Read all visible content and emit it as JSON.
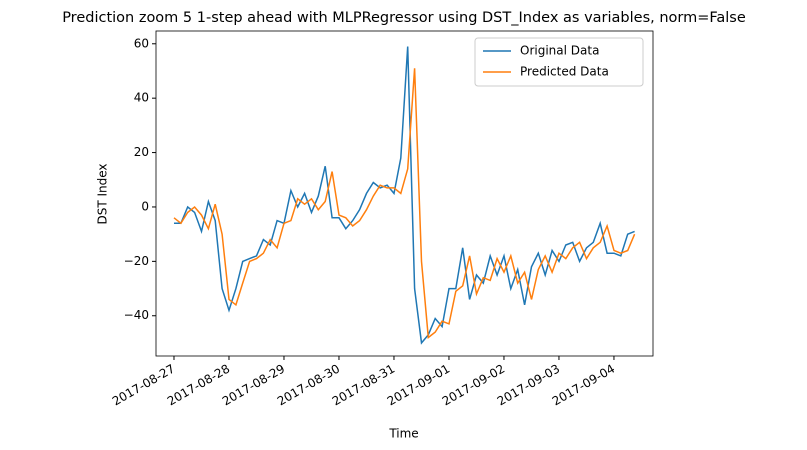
{
  "chart_data": {
    "type": "line",
    "title": "Prediction zoom 5 1-step ahead with MLPRegressor using DST_Index as variables, norm=False",
    "x_label": "Time",
    "y_label": "DST Index",
    "x": [
      0,
      0.125,
      0.25,
      0.375,
      0.5,
      0.625,
      0.75,
      0.875,
      1,
      1.125,
      1.25,
      1.375,
      1.5,
      1.625,
      1.75,
      1.875,
      2,
      2.125,
      2.25,
      2.375,
      2.5,
      2.625,
      2.75,
      2.875,
      3,
      3.125,
      3.25,
      3.375,
      3.5,
      3.625,
      3.75,
      3.875,
      4,
      4.125,
      4.25,
      4.375,
      4.5,
      4.625,
      4.75,
      4.875,
      5,
      5.125,
      5.25,
      5.375,
      5.5,
      5.625,
      5.75,
      5.875,
      6,
      6.125,
      6.25,
      6.375,
      6.5,
      6.625,
      6.75,
      6.875,
      7,
      7.125,
      7.25,
      7.375,
      7.5,
      7.625,
      7.75,
      7.875,
      8,
      8.125,
      8.25,
      8.375
    ],
    "series": [
      {
        "name": "Original Data",
        "color": "#1f77b4",
        "values": [
          -6,
          -6,
          0,
          -2,
          -9,
          2,
          -5,
          -30,
          -38,
          -30,
          -20,
          -19,
          -18,
          -12,
          -14,
          -5,
          -6,
          6,
          0,
          5,
          -2,
          4,
          15,
          -4,
          -4,
          -8,
          -5,
          -1,
          5,
          9,
          7,
          8,
          5,
          18,
          59,
          -30,
          -50,
          -47,
          -41,
          -44,
          -30,
          -30,
          -15,
          -34,
          -25,
          -28,
          -18,
          -25,
          -18,
          -30,
          -23,
          -36,
          -22,
          -17,
          -25,
          -16,
          -20,
          -14,
          -13,
          -20,
          -15,
          -13,
          -6,
          -17,
          -17,
          -18,
          -10,
          -9
        ]
      },
      {
        "name": "Predicted Data",
        "color": "#ff7f0e",
        "values": [
          -4,
          -6,
          -2,
          0,
          -3,
          -8,
          1,
          -10,
          -34,
          -36,
          -28,
          -20,
          -19,
          -17,
          -12,
          -15,
          -6,
          -5,
          3,
          1,
          3,
          -1,
          2,
          13,
          -3,
          -4,
          -7,
          -5,
          -1,
          4,
          8,
          7,
          7,
          5,
          14,
          51,
          -20,
          -48,
          -46,
          -42,
          -43,
          -31,
          -29,
          -18,
          -32,
          -26,
          -27,
          -19,
          -24,
          -18,
          -28,
          -24,
          -34,
          -23,
          -18,
          -24,
          -17,
          -19,
          -15,
          -13,
          -19,
          -15,
          -13,
          -7,
          -16,
          -17,
          -16,
          -10
        ]
      }
    ],
    "xlim": [
      -0.327,
      8.71
    ],
    "xticks": [
      {
        "value": 0,
        "label": "2017-08-27"
      },
      {
        "value": 1,
        "label": "2017-08-28"
      },
      {
        "value": 2,
        "label": "2017-08-29"
      },
      {
        "value": 3,
        "label": "2017-08-30"
      },
      {
        "value": 4,
        "label": "2017-08-31"
      },
      {
        "value": 5,
        "label": "2017-09-01"
      },
      {
        "value": 6,
        "label": "2017-09-02"
      },
      {
        "value": 7,
        "label": "2017-09-03"
      },
      {
        "value": 8,
        "label": "2017-09-04"
      }
    ],
    "ylim": [
      -54.8,
      64.7
    ],
    "yticks": [
      {
        "value": -40,
        "label": "−40"
      },
      {
        "value": -20,
        "label": "−20"
      },
      0,
      20,
      40,
      60
    ],
    "legend": "upper right"
  }
}
